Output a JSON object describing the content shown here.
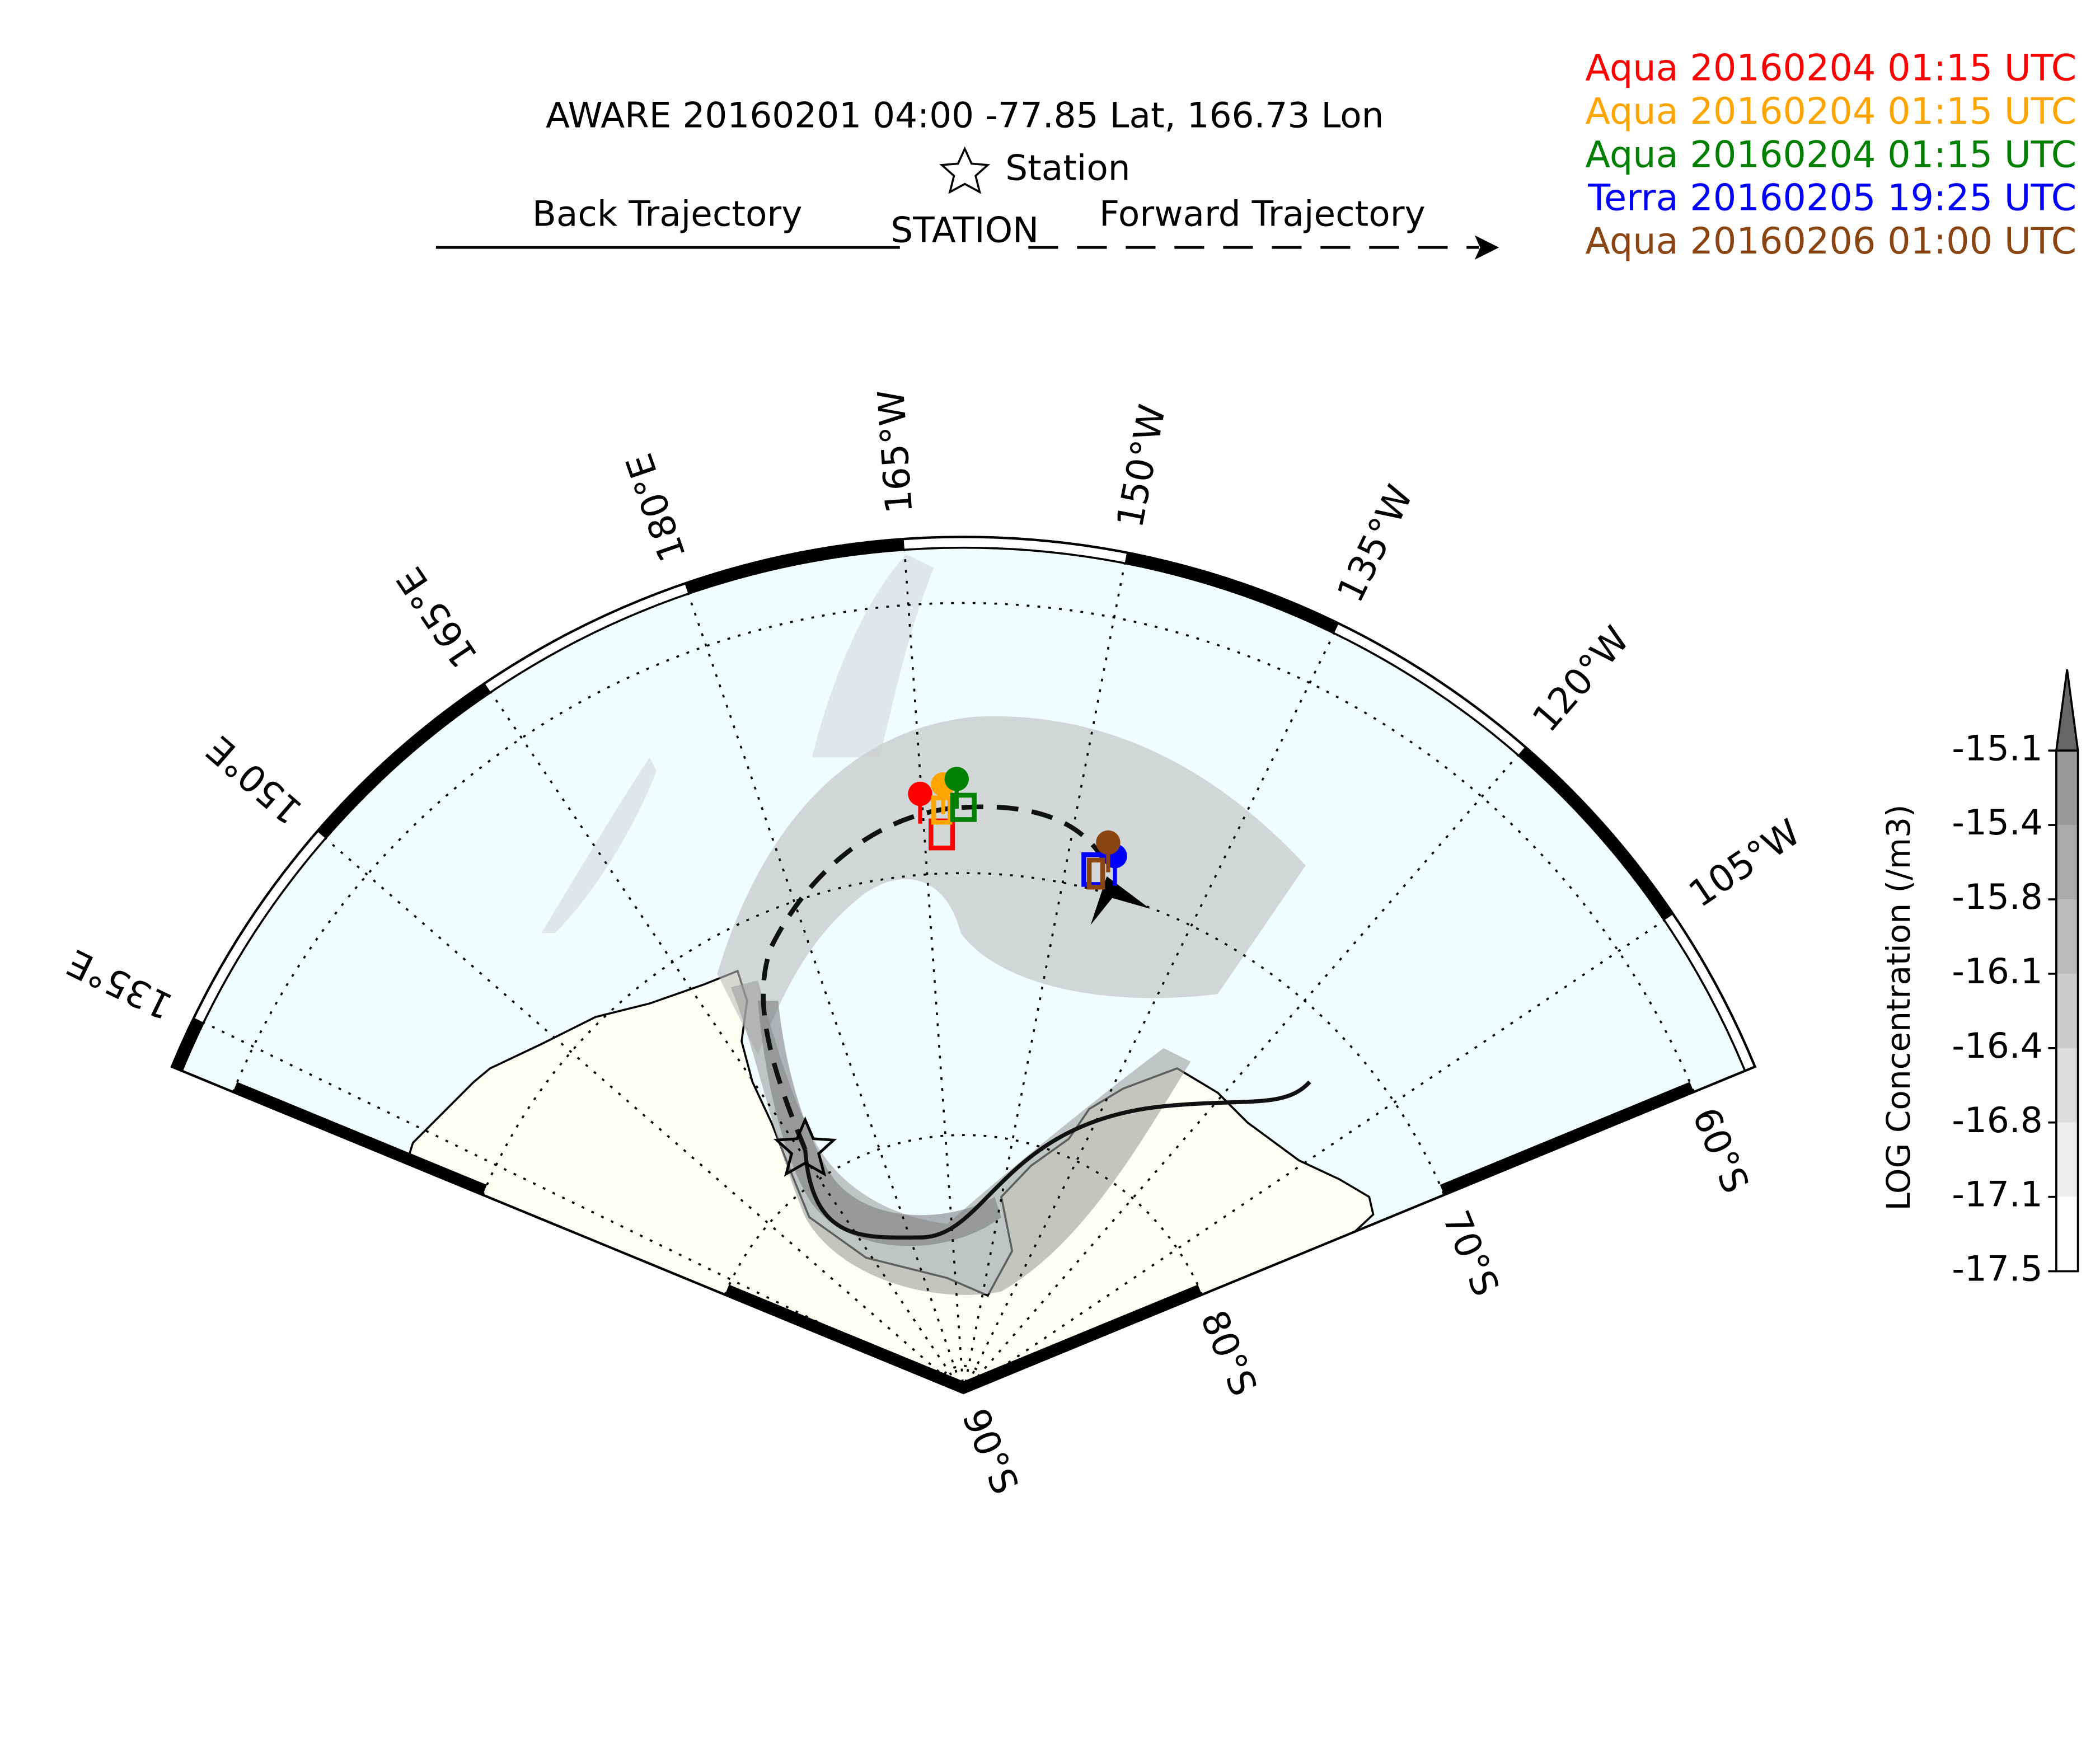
{
  "title": "AWARE 20160201 04:00  -77.85 Lat,  166.73 Lon",
  "station_legend": "Station",
  "back_trajectory": "Back Trajectory",
  "station": "STATION",
  "forward_trajectory": "Forward Trajectory",
  "overpasses": [
    {
      "label": "Aqua 20160204 01:15 UTC",
      "color": "#ff0000"
    },
    {
      "label": "Aqua 20160204 01:15 UTC",
      "color": "#ffa500"
    },
    {
      "label": "Aqua 20160204 01:15 UTC",
      "color": "#008000"
    },
    {
      "label": "Terra 20160205 19:25 UTC",
      "color": "#0000ff"
    },
    {
      "label": "Aqua 20160206 01:00 UTC",
      "color": "#8b4513"
    }
  ],
  "meridian_labels": [
    "135°E",
    "150°E",
    "165°E",
    "180°E",
    "165°W",
    "150°W",
    "135°W",
    "120°W",
    "105°W"
  ],
  "parallel_labels": [
    "90°S",
    "80°S",
    "70°S",
    "60°S"
  ],
  "colorbar": {
    "label": "LOG Concentration (/m3)",
    "ticks": [
      -17.5,
      -17.1,
      -16.8,
      -16.4,
      -16.1,
      -15.8,
      -15.4,
      -15.1
    ],
    "colors": [
      "#ffffff",
      "#eeeeee",
      "#dddddd",
      "#cccccc",
      "#bbbbbb",
      "#aaaaaa",
      "#999999"
    ],
    "extend_color": "#666666"
  }
}
